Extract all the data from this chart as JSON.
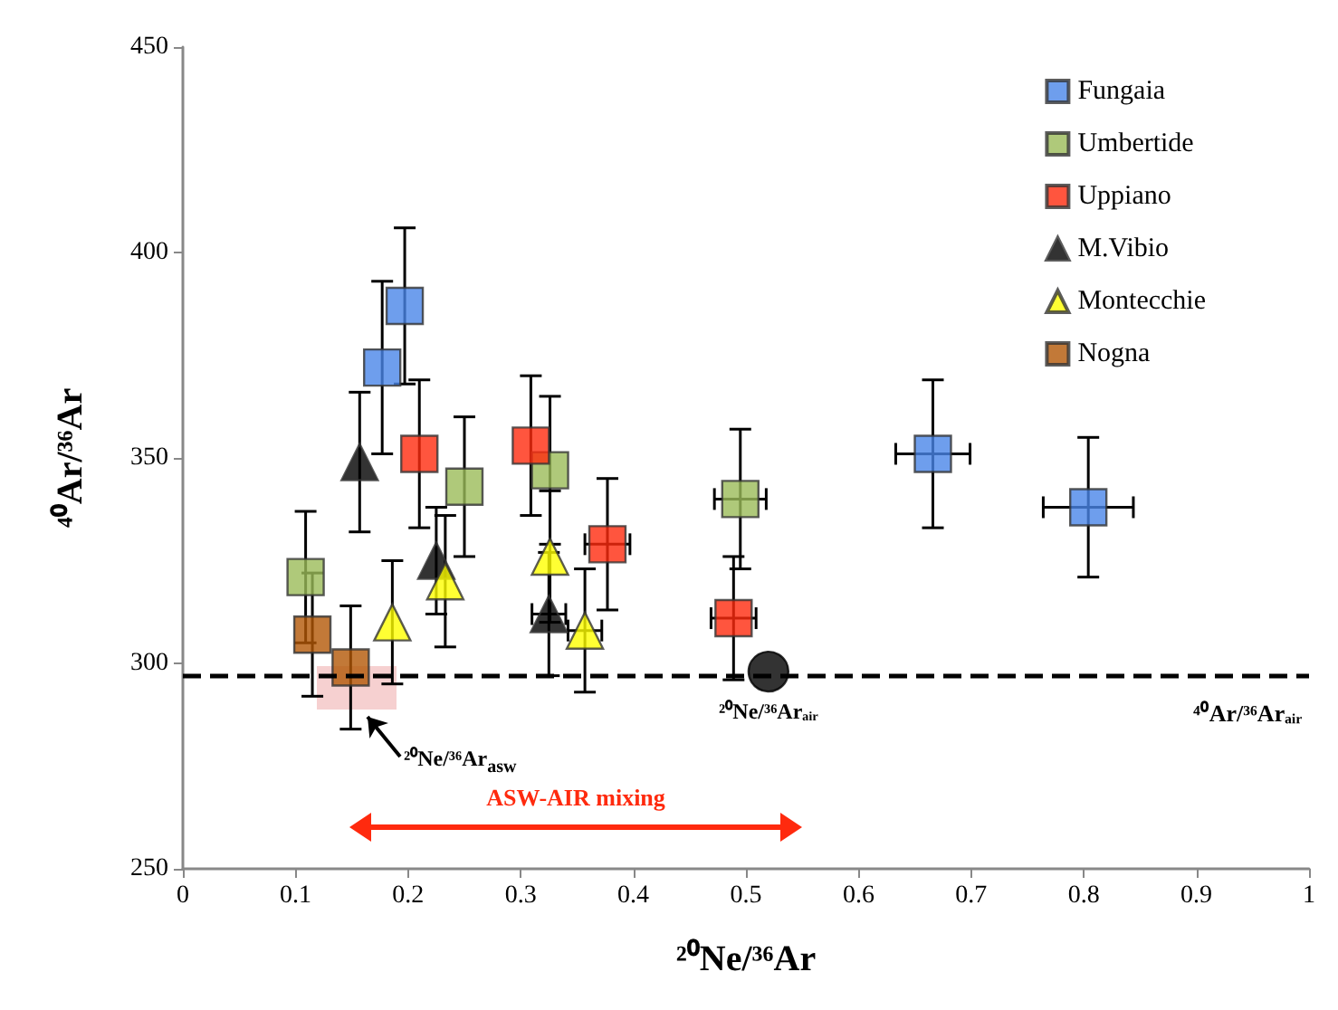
{
  "chart_data": {
    "type": "scatter",
    "xlabel": "²⁰Ne/³⁶Ar",
    "ylabel": "⁴⁰Ar/³⁶Ar",
    "xlim": [
      0,
      1
    ],
    "ylim": [
      250,
      450
    ],
    "xticks": [
      0,
      0.1,
      0.2,
      0.3,
      0.4,
      0.5,
      0.6,
      0.7,
      0.8,
      0.9,
      1
    ],
    "yticks": [
      250,
      300,
      350,
      400,
      450
    ],
    "grid": false,
    "legend": "top right",
    "series": [
      {
        "name": "Fungaia",
        "color": "#4a86e8",
        "marker": "square",
        "x": [
          0.177,
          0.197,
          0.666,
          0.804
        ],
        "values": [
          372,
          387,
          351,
          338
        ],
        "errors": [
          21,
          19,
          18,
          17
        ],
        "xerrors": [
          null,
          null,
          0.033,
          0.04
        ]
      },
      {
        "name": "Umbertide",
        "color": "#9bbb59",
        "marker": "square",
        "x": [
          0.109,
          0.25,
          0.326,
          0.495
        ],
        "values": [
          321,
          343,
          347,
          340
        ],
        "errors": [
          16,
          17,
          18,
          17
        ],
        "xerrors": [
          null,
          null,
          null,
          0.023
        ]
      },
      {
        "name": "Uppiano",
        "color": "#ff2a0e",
        "marker": "square",
        "x": [
          0.21,
          0.309,
          0.377,
          0.489
        ],
        "values": [
          351,
          353,
          329,
          311
        ],
        "errors": [
          18,
          17,
          16,
          15
        ],
        "xerrors": [
          null,
          null,
          0.02,
          0.02
        ]
      },
      {
        "name": "M.Vibio",
        "color": "#000000",
        "marker": "triangle",
        "x": [
          0.157,
          0.225,
          0.325
        ],
        "values": [
          349,
          325,
          312
        ],
        "errors": [
          17,
          13,
          15
        ],
        "xerrors": [
          null,
          null,
          0.015
        ]
      },
      {
        "name": "Montecchie",
        "color": "#ffff00",
        "marker": "triangle",
        "x": [
          0.186,
          0.233,
          0.326,
          0.357
        ],
        "values": [
          310,
          320,
          326,
          308
        ],
        "errors": [
          15,
          16,
          16,
          15
        ],
        "xerrors": [
          null,
          null,
          null,
          0.015
        ]
      },
      {
        "name": "Nogna",
        "color": "#b35806",
        "marker": "square",
        "x": [
          0.115,
          0.149
        ],
        "values": [
          307,
          299
        ],
        "errors": [
          15,
          15
        ],
        "xerrors": [
          null,
          null
        ]
      },
      {
        "color": "#000000",
        "marker": "circle",
        "x": [
          0.52
        ],
        "values": [
          298
        ]
      }
    ],
    "ref_lines": [
      {
        "axis": "y",
        "value": 297,
        "label": "⁴⁰Ar/³⁶Arₐᵢᵣ",
        "line_style": "dashed",
        "color": "#000000"
      }
    ],
    "annotations": [
      "²⁰Ne/³⁶Ar$_{asw}$",
      {
        "text": "²⁰Ne/³⁶Arₐᵢᵣ",
        "x": 0.52,
        "y": 298
      },
      "ASW-AIR mixing"
    ]
  }
}
